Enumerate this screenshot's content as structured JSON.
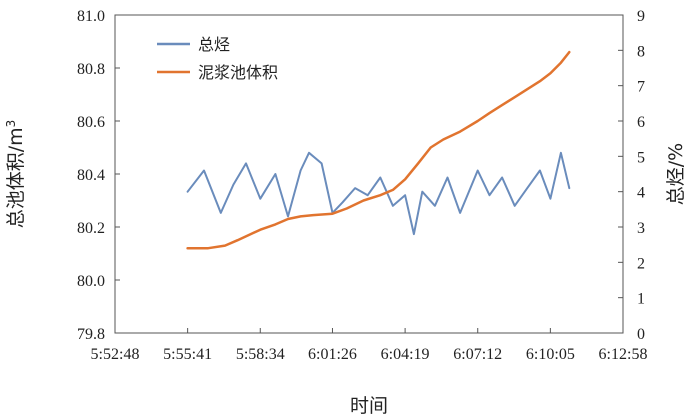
{
  "chart_data": {
    "type": "line",
    "xlabel": "时间",
    "ylabel_left": "总池体积/m",
    "ylabel_left_sup": "3",
    "ylabel_right": "总烃/%",
    "x_ticks": [
      "5:52:48",
      "5:55:41",
      "5:58:34",
      "6:01:26",
      "6:04:19",
      "6:07:12",
      "6:10:05",
      "6:12:58"
    ],
    "left_axis": {
      "min": 79.8,
      "max": 81.0,
      "ticks": [
        "79.8",
        "80.0",
        "80.2",
        "80.4",
        "80.6",
        "80.8",
        "81.0"
      ]
    },
    "right_axis": {
      "min": 0,
      "max": 9,
      "ticks": [
        "0",
        "1",
        "2",
        "3",
        "4",
        "5",
        "6",
        "7",
        "8",
        "9"
      ]
    },
    "legend_placement": "top-left",
    "grid": false,
    "series": [
      {
        "name": "总烃",
        "axis": "right",
        "color": "#6a8cbc",
        "x": [
          "5:55:41",
          "5:56:20",
          "5:57:00",
          "5:57:30",
          "5:58:00",
          "5:58:34",
          "5:59:10",
          "5:59:40",
          "6:00:10",
          "6:00:30",
          "6:01:00",
          "6:01:26",
          "6:01:50",
          "6:02:20",
          "6:02:50",
          "6:03:20",
          "6:03:50",
          "6:04:19",
          "6:04:40",
          "6:05:00",
          "6:05:30",
          "6:06:00",
          "6:06:30",
          "6:07:12",
          "6:07:40",
          "6:08:10",
          "6:08:40",
          "6:09:10",
          "6:09:40",
          "6:10:05",
          "6:10:30",
          "6:10:50"
        ],
        "values": [
          4.0,
          4.6,
          3.4,
          4.2,
          4.8,
          3.8,
          4.5,
          3.3,
          4.6,
          5.1,
          4.8,
          3.4,
          3.7,
          4.1,
          3.9,
          4.4,
          3.6,
          3.9,
          2.8,
          4.0,
          3.6,
          4.4,
          3.4,
          4.6,
          3.9,
          4.4,
          3.6,
          4.1,
          4.6,
          3.8,
          5.1,
          4.1
        ]
      },
      {
        "name": "泥浆池体积",
        "axis": "left",
        "color": "#e1742f",
        "x": [
          "5:55:41",
          "5:56:30",
          "5:57:10",
          "5:57:40",
          "5:58:34",
          "5:59:10",
          "5:59:40",
          "6:00:10",
          "6:00:40",
          "6:01:26",
          "6:02:00",
          "6:02:40",
          "6:03:20",
          "6:03:50",
          "6:04:19",
          "6:04:50",
          "6:05:20",
          "6:05:50",
          "6:06:30",
          "6:07:12",
          "6:07:40",
          "6:08:10",
          "6:08:40",
          "6:09:10",
          "6:09:40",
          "6:10:05",
          "6:10:30",
          "6:10:50"
        ],
        "values": [
          80.12,
          80.12,
          80.13,
          80.15,
          80.19,
          80.21,
          80.23,
          80.24,
          80.245,
          80.25,
          80.27,
          80.3,
          80.32,
          80.34,
          80.38,
          80.44,
          80.5,
          80.53,
          80.56,
          80.6,
          80.63,
          80.66,
          80.69,
          80.72,
          80.75,
          80.78,
          80.82,
          80.86
        ]
      }
    ]
  }
}
